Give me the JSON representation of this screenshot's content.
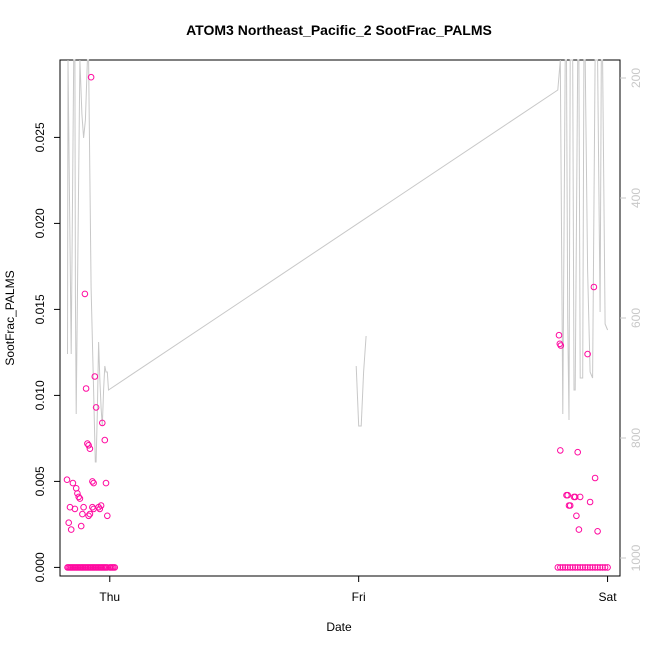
{
  "chart_data": {
    "type": "scatter",
    "title": "ATOM3 Northeast_Pacific_2 SootFrac_PALMS",
    "xlabel": "Date",
    "ylabel": "SootFrac_PALMS",
    "x_ticks": [
      "Thu",
      "Fri",
      "Sat"
    ],
    "ylim": [
      -0.0005,
      0.0295
    ],
    "y_ticks": [
      "0.000",
      "0.005",
      "0.010",
      "0.015",
      "0.020",
      "0.025"
    ],
    "y2_ticks": [
      "200",
      "400",
      "600",
      "800",
      "1000"
    ],
    "y2lim_inverted": [
      1030,
      170
    ],
    "colors": {
      "points": "#ff0aa0",
      "line": "#c8c8c8",
      "axis": "#000000"
    },
    "series": [
      {
        "type": "scatter",
        "x": [
          -0.17,
          -0.165,
          -0.16,
          -0.155,
          -0.15,
          -0.145,
          -0.14,
          -0.135,
          -0.13,
          -0.125,
          -0.12,
          -0.115,
          -0.11,
          -0.105,
          -0.1,
          -0.095,
          -0.09,
          -0.085,
          -0.08,
          -0.075,
          -0.07,
          -0.065,
          -0.06,
          -0.055,
          -0.05,
          -0.045,
          -0.04,
          -0.035,
          -0.03,
          -0.025,
          -0.02,
          -0.015,
          -0.01,
          -0.172,
          -0.165,
          -0.16,
          -0.155,
          -0.148,
          -0.14,
          -0.135,
          -0.13,
          -0.125,
          -0.12,
          -0.115,
          -0.11,
          -0.105,
          -0.1,
          -0.095,
          -0.09,
          -0.085,
          -0.08,
          -0.075,
          -0.07,
          -0.065,
          -0.06,
          -0.055,
          -0.045,
          -0.04,
          -0.035,
          -0.03,
          -0.02,
          -0.015,
          -0.01,
          -0.085,
          -0.08,
          -0.07,
          -0.065,
          0.0,
          0.005,
          0.01,
          0.015,
          0.02,
          1.8,
          1.81,
          1.82,
          1.83,
          1.84,
          1.85,
          1.86,
          1.87,
          1.88,
          1.89,
          1.9,
          1.91,
          1.92,
          1.93,
          1.94,
          1.95,
          1.96,
          1.97,
          1.98,
          1.99,
          2.0,
          1.805,
          1.808,
          1.81,
          1.812,
          1.835,
          1.84,
          1.845,
          1.85,
          1.865,
          1.87,
          1.875,
          1.88,
          1.885,
          1.89,
          1.92,
          1.93,
          1.945,
          1.95,
          1.96
        ],
        "y": [
          0,
          0,
          0,
          0,
          0,
          0,
          0,
          0,
          0,
          0,
          0,
          0,
          0,
          0,
          0,
          0,
          0,
          0,
          0,
          0,
          0,
          0,
          0,
          0,
          0,
          0,
          0,
          0,
          0,
          0,
          0,
          0,
          0,
          0.0051,
          0.0026,
          0.0035,
          0.0022,
          0.0049,
          0.0034,
          0.0046,
          0.0043,
          0.0041,
          0.004,
          0.0024,
          0.0031,
          0.0035,
          0.0159,
          0.0104,
          0.0072,
          0.0071,
          0.0069,
          0.0285,
          0.005,
          0.0049,
          0.0111,
          0.0093,
          0.0035,
          0.0034,
          0.0036,
          0.0084,
          0.0074,
          0.0049,
          0.003,
          0.003,
          0.0031,
          0.0035,
          0.0034,
          0,
          0,
          0,
          0,
          0,
          0,
          0,
          0,
          0,
          0,
          0,
          0,
          0,
          0,
          0,
          0,
          0,
          0,
          0,
          0,
          0,
          0,
          0,
          0,
          0,
          0,
          0.0135,
          0.013,
          0.0068,
          0.0129,
          0.0042,
          0.0042,
          0.0036,
          0.0036,
          0.0041,
          0.0041,
          0.003,
          0.0067,
          0.0022,
          0.0041,
          0.0124,
          0.0038,
          0.0163,
          0.0052,
          0.0021
        ]
      },
      {
        "type": "line",
        "name": "",
        "x": [
          -0.17,
          -0.168,
          -0.155,
          -0.145,
          -0.14,
          -0.138,
          -0.135,
          -0.12,
          -0.112,
          -0.105,
          -0.098,
          -0.09,
          -0.085,
          -0.075,
          -0.065,
          -0.058,
          -0.055,
          -0.05,
          -0.045,
          -0.04,
          -0.035,
          -0.03,
          -0.025,
          -0.02,
          -0.015,
          -0.01,
          -0.005,
          1.8,
          1.81,
          1.82,
          1.83,
          1.835,
          1.84,
          1.845,
          1.85,
          1.86,
          1.865,
          1.87,
          1.88,
          1.885,
          1.89,
          1.9,
          1.905,
          1.91,
          1.92,
          1.93,
          1.94,
          1.95,
          1.96,
          1.97,
          1.975,
          1.98,
          1.99,
          2.0
        ],
        "y": [
          660,
          170,
          660,
          170,
          170,
          560,
          760,
          170,
          260,
          300,
          270,
          170,
          170,
          550,
          720,
          840,
          840,
          760,
          640,
          700,
          750,
          780,
          720,
          680,
          690,
          690,
          720,
          220,
          170,
          760,
          170,
          170,
          600,
          770,
          170,
          170,
          720,
          720,
          170,
          170,
          700,
          700,
          170,
          170,
          520,
          690,
          700,
          170,
          170,
          590,
          170,
          170,
          610,
          620
        ]
      },
      {
        "type": "line",
        "name": "",
        "x": [
          0.99,
          1.0,
          1.01,
          1.02,
          1.03
        ],
        "y": [
          680,
          780,
          780,
          690,
          630
        ]
      }
    ]
  }
}
